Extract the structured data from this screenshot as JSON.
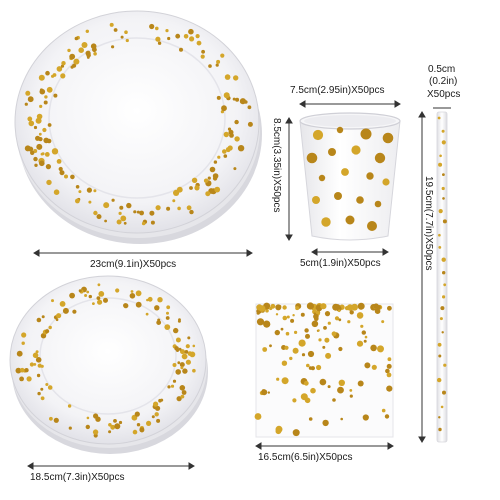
{
  "products": {
    "large_plate": {
      "size_label": "23cm(9.1in)X50pcs"
    },
    "small_plate": {
      "size_label": "18.5cm(7.3in)X50pcs"
    },
    "cup": {
      "top_label": "7.5cm(2.95in)X50pcs",
      "height_label": "8.5cm(3.35in)X50pcs",
      "bottom_label": "5cm(1.9in)X50pcs"
    },
    "napkin": {
      "size_label": "16.5cm(6.5in)X50pcs"
    },
    "straw": {
      "width_label_1": "0.5cm",
      "width_label_2": "(0.2in)",
      "width_label_3": "X50pcs",
      "length_label": "19.5cm(7.7in)X50pcs"
    }
  },
  "colors": {
    "gold": "#d4a62a",
    "gold_dark": "#b8861a",
    "plate": "#f2f2f4",
    "rim_shadow": "#dcdce2",
    "line": "#333333"
  }
}
